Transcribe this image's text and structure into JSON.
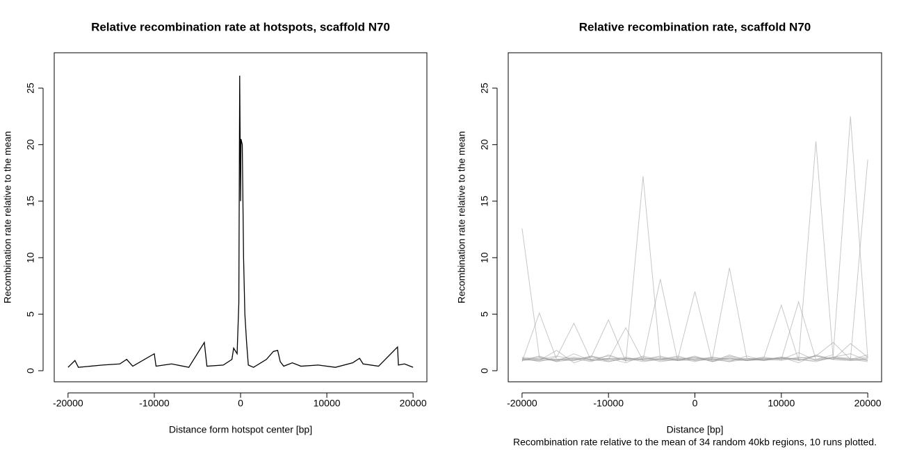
{
  "chart_data": [
    {
      "type": "line",
      "title": "Relative recombination rate at hotspots, scaffold N70",
      "xlabel": "Distance form hotspot center [bp]",
      "ylabel": "Recombination rate relative to the mean",
      "x": [
        -20000,
        -19200,
        -18800,
        -16000,
        -14000,
        -13200,
        -12500,
        -10000,
        -9800,
        -8000,
        -6000,
        -4200,
        -3900,
        -2000,
        -1000,
        -800,
        -400,
        -200,
        -100,
        0,
        50,
        200,
        350,
        500,
        700,
        900,
        1500,
        3000,
        3800,
        4300,
        4600,
        5000,
        6000,
        7000,
        9000,
        11000,
        13000,
        13800,
        14200,
        16000,
        18200,
        18300,
        19000,
        20000
      ],
      "values": [
        0.3,
        0.9,
        0.3,
        0.5,
        0.6,
        1.0,
        0.4,
        1.5,
        0.4,
        0.6,
        0.3,
        2.5,
        0.4,
        0.5,
        1.0,
        2.0,
        1.5,
        6,
        26.1,
        15,
        20.5,
        20,
        10,
        5,
        2.5,
        0.5,
        0.3,
        1.0,
        1.7,
        1.8,
        0.8,
        0.4,
        0.7,
        0.4,
        0.5,
        0.3,
        0.7,
        1.1,
        0.6,
        0.4,
        2.1,
        0.5,
        0.6,
        0.3
      ],
      "color": "#000000",
      "xlim": [
        -21600,
        21600
      ],
      "ylim": [
        -0.98,
        28.13
      ],
      "xticks": [
        -20000,
        -10000,
        0,
        10000,
        20000
      ],
      "yticks": [
        0,
        5,
        10,
        15,
        20,
        25
      ]
    },
    {
      "type": "line",
      "title": "Relative recombination rate, scaffold N70",
      "xlabel": "Distance [bp]",
      "ylabel": "Recombination rate relative to the mean",
      "caption": "Recombination rate relative to the mean of 34 random 40kb regions, 10 runs plotted.",
      "x": [
        -20000,
        -18000,
        -16000,
        -14000,
        -12000,
        -10000,
        -8000,
        -6000,
        -4000,
        -2000,
        0,
        2000,
        4000,
        6000,
        8000,
        10000,
        12000,
        14000,
        16000,
        18000,
        20000
      ],
      "series": [
        {
          "color": "#999999",
          "values": [
            12.6,
            1.2,
            0.8,
            1.5,
            0.9,
            1.1,
            0.7,
            1.3,
            0.9,
            1.0,
            1.2,
            0.8,
            1.4,
            0.9,
            1.1,
            1.0,
            1.6,
            0.9,
            1.2,
            1.0,
            0.8
          ]
        },
        {
          "color": "#999999",
          "values": [
            1.0,
            0.9,
            1.8,
            0.7,
            1.2,
            4.5,
            0.8,
            17.2,
            1.0,
            0.9,
            1.3,
            0.8,
            1.1,
            0.9,
            1.0,
            1.2,
            0.7,
            1.4,
            1.0,
            0.9,
            1.1
          ]
        },
        {
          "color": "#999999",
          "values": [
            0.8,
            5.1,
            1.0,
            0.9,
            1.3,
            0.8,
            1.1,
            1.0,
            8.1,
            0.9,
            1.2,
            1.0,
            0.8,
            1.3,
            0.9,
            1.1,
            1.0,
            0.8,
            1.2,
            1.5,
            0.9
          ]
        },
        {
          "color": "#999999",
          "values": [
            1.1,
            0.8,
            1.2,
            4.2,
            0.9,
            1.0,
            3.8,
            0.9,
            1.1,
            1.0,
            7.0,
            0.8,
            1.2,
            0.9,
            1.0,
            1.1,
            0.9,
            1.3,
            1.0,
            2.4,
            1.2
          ]
        },
        {
          "color": "#999999",
          "values": [
            0.9,
            1.3,
            0.8,
            1.0,
            1.2,
            0.9,
            1.1,
            0.8,
            1.0,
            1.3,
            0.9,
            1.0,
            9.1,
            1.1,
            0.9,
            1.2,
            1.0,
            0.9,
            1.1,
            1.0,
            1.4
          ]
        },
        {
          "color": "#999999",
          "values": [
            1.2,
            1.0,
            0.9,
            1.1,
            0.8,
            1.4,
            0.9,
            1.0,
            1.2,
            0.9,
            1.0,
            1.1,
            0.8,
            1.0,
            1.2,
            5.8,
            0.9,
            1.3,
            1.0,
            0.9,
            1.0
          ]
        },
        {
          "color": "#999999",
          "values": [
            1.0,
            1.1,
            1.0,
            0.9,
            1.3,
            1.0,
            1.2,
            0.9,
            1.0,
            1.1,
            0.8,
            1.2,
            1.0,
            0.9,
            1.1,
            1.0,
            6.1,
            1.0,
            1.2,
            1.1,
            0.9
          ]
        },
        {
          "color": "#999999",
          "values": [
            0.9,
            1.0,
            1.3,
            1.0,
            0.9,
            1.1,
            1.0,
            1.2,
            0.8,
            1.0,
            1.1,
            0.9,
            1.3,
            1.0,
            0.9,
            1.2,
            1.0,
            20.3,
            1.1,
            1.0,
            1.2
          ]
        },
        {
          "color": "#999999",
          "values": [
            1.1,
            0.9,
            1.0,
            1.2,
            1.0,
            0.8,
            1.1,
            1.0,
            1.3,
            0.9,
            1.0,
            1.2,
            0.9,
            1.1,
            1.0,
            0.9,
            1.2,
            1.0,
            1.4,
            22.5,
            1.1
          ]
        },
        {
          "color": "#999999",
          "values": [
            1.0,
            1.2,
            0.9,
            1.1,
            1.0,
            1.3,
            0.9,
            1.1,
            1.0,
            1.2,
            0.9,
            1.0,
            1.1,
            0.9,
            1.2,
            1.0,
            1.1,
            1.3,
            2.5,
            1.0,
            18.7
          ]
        }
      ],
      "xlim": [
        -21600,
        21600
      ],
      "ylim": [
        -0.98,
        28.13
      ],
      "xticks": [
        -20000,
        -10000,
        0,
        10000,
        20000
      ],
      "yticks": [
        0,
        5,
        10,
        15,
        20,
        25
      ]
    }
  ]
}
